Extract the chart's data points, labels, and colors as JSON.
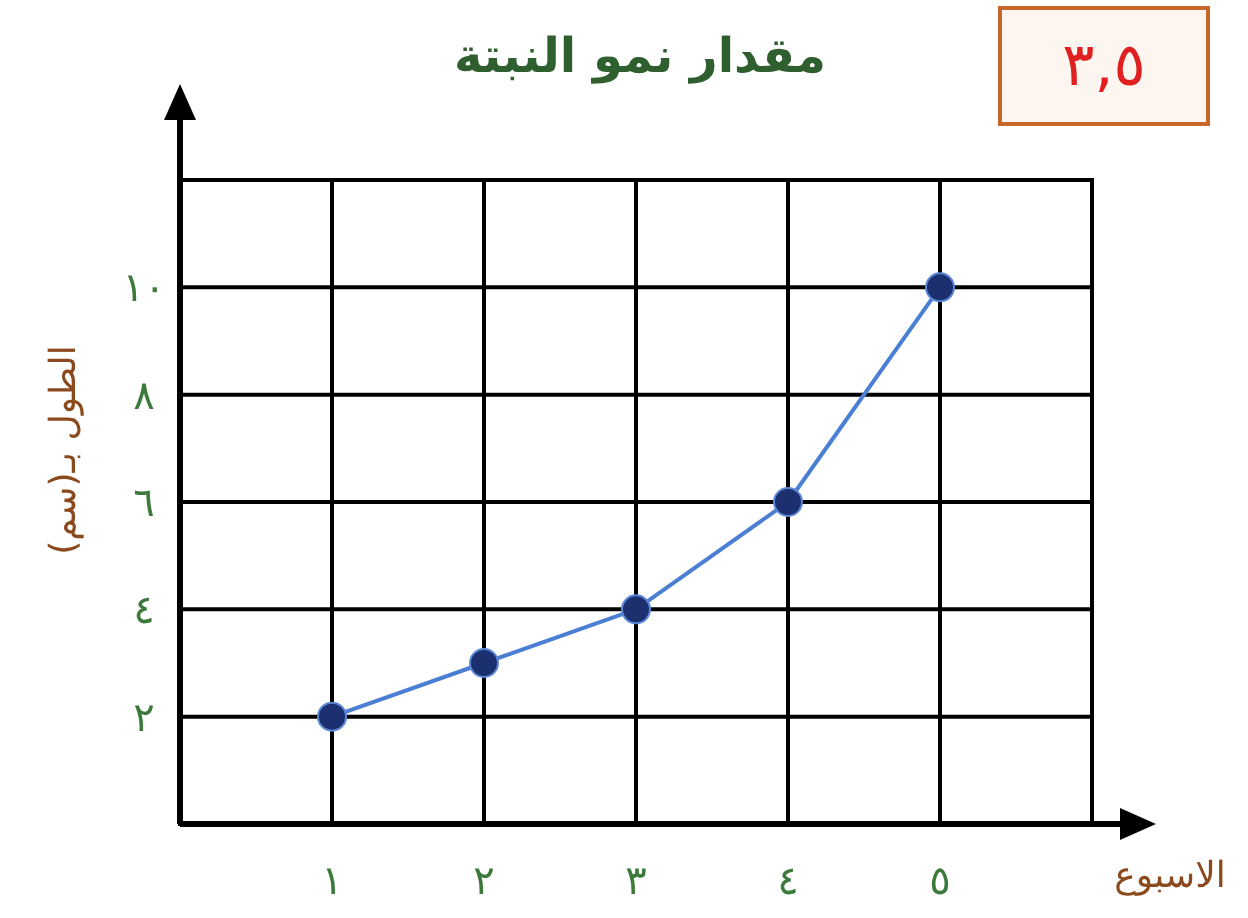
{
  "chart_data": {
    "type": "line",
    "title": "مقدار نمو النبتة",
    "xlabel": "الاسبوع",
    "ylabel": "الطول بـ(سم)",
    "annotations": [
      "٣,٥"
    ],
    "x": [
      1,
      2,
      3,
      4,
      5
    ],
    "series": [
      {
        "color": "#4a7fd4",
        "values": [
          2,
          3,
          4,
          6,
          10
        ]
      }
    ],
    "xlim": [
      0,
      6
    ],
    "ylim": [
      0,
      12
    ],
    "xticks": [
      {
        "value": 1,
        "label": "١"
      },
      {
        "value": 2,
        "label": "٢"
      },
      {
        "value": 3,
        "label": "٣"
      },
      {
        "value": 4,
        "label": "٤"
      },
      {
        "value": 5,
        "label": "٥"
      }
    ],
    "yticks": [
      {
        "value": 2,
        "label": "٢"
      },
      {
        "value": 4,
        "label": "٤"
      },
      {
        "value": 6,
        "label": "٦"
      },
      {
        "value": 8,
        "label": "٨"
      },
      {
        "value": 10,
        "label": "١٠"
      }
    ],
    "grid": true,
    "marker": "circle",
    "line_style": "solid"
  }
}
